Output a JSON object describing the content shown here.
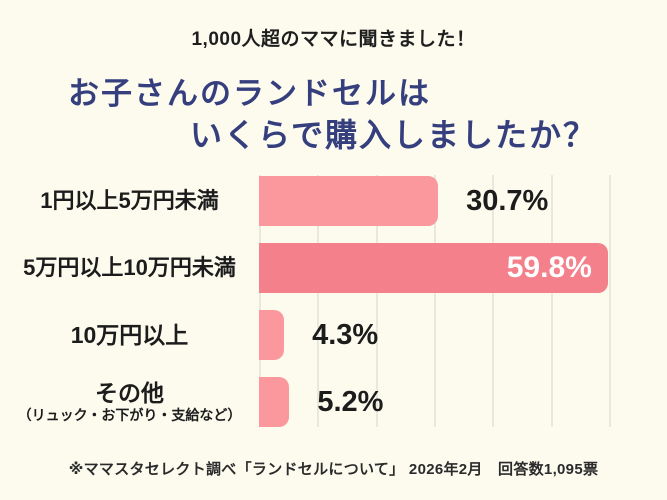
{
  "header": {
    "subtitle": "1,000人超のママに聞きました！",
    "title_line1": "お子さんのランドセルは",
    "title_line2": "いくらで購入しましたか？"
  },
  "chart_data": {
    "type": "bar",
    "orientation": "horizontal",
    "title": "お子さんのランドセルはいくらで購入しましたか？",
    "categories": [
      "1円以上5万円未満",
      "5万円以上10万円未満",
      "10万円以上",
      "その他"
    ],
    "category_notes": [
      "",
      "",
      "",
      "（リュック・お下がり・支給など）"
    ],
    "values": [
      30.7,
      59.8,
      4.3,
      5.2
    ],
    "value_labels": [
      "30.7%",
      "59.8%",
      "4.3%",
      "5.2%"
    ],
    "xlim": [
      0,
      70
    ],
    "gridline_interval_pct": 10,
    "grid": true,
    "legend": false,
    "highlight_index": 1,
    "colors": {
      "background": "#FCFBEE",
      "bar": "#FB989D",
      "bar_highlight": "#F3808A",
      "value_label": "#1C1C1C",
      "value_label_highlight": "#FFFFFF",
      "title": "#363F7E",
      "gridline": "#E8E8DD"
    }
  },
  "footer": {
    "source": "※ママスタセレクト調べ「ランドセルについて」 2026年2月　回答数1,095票"
  }
}
